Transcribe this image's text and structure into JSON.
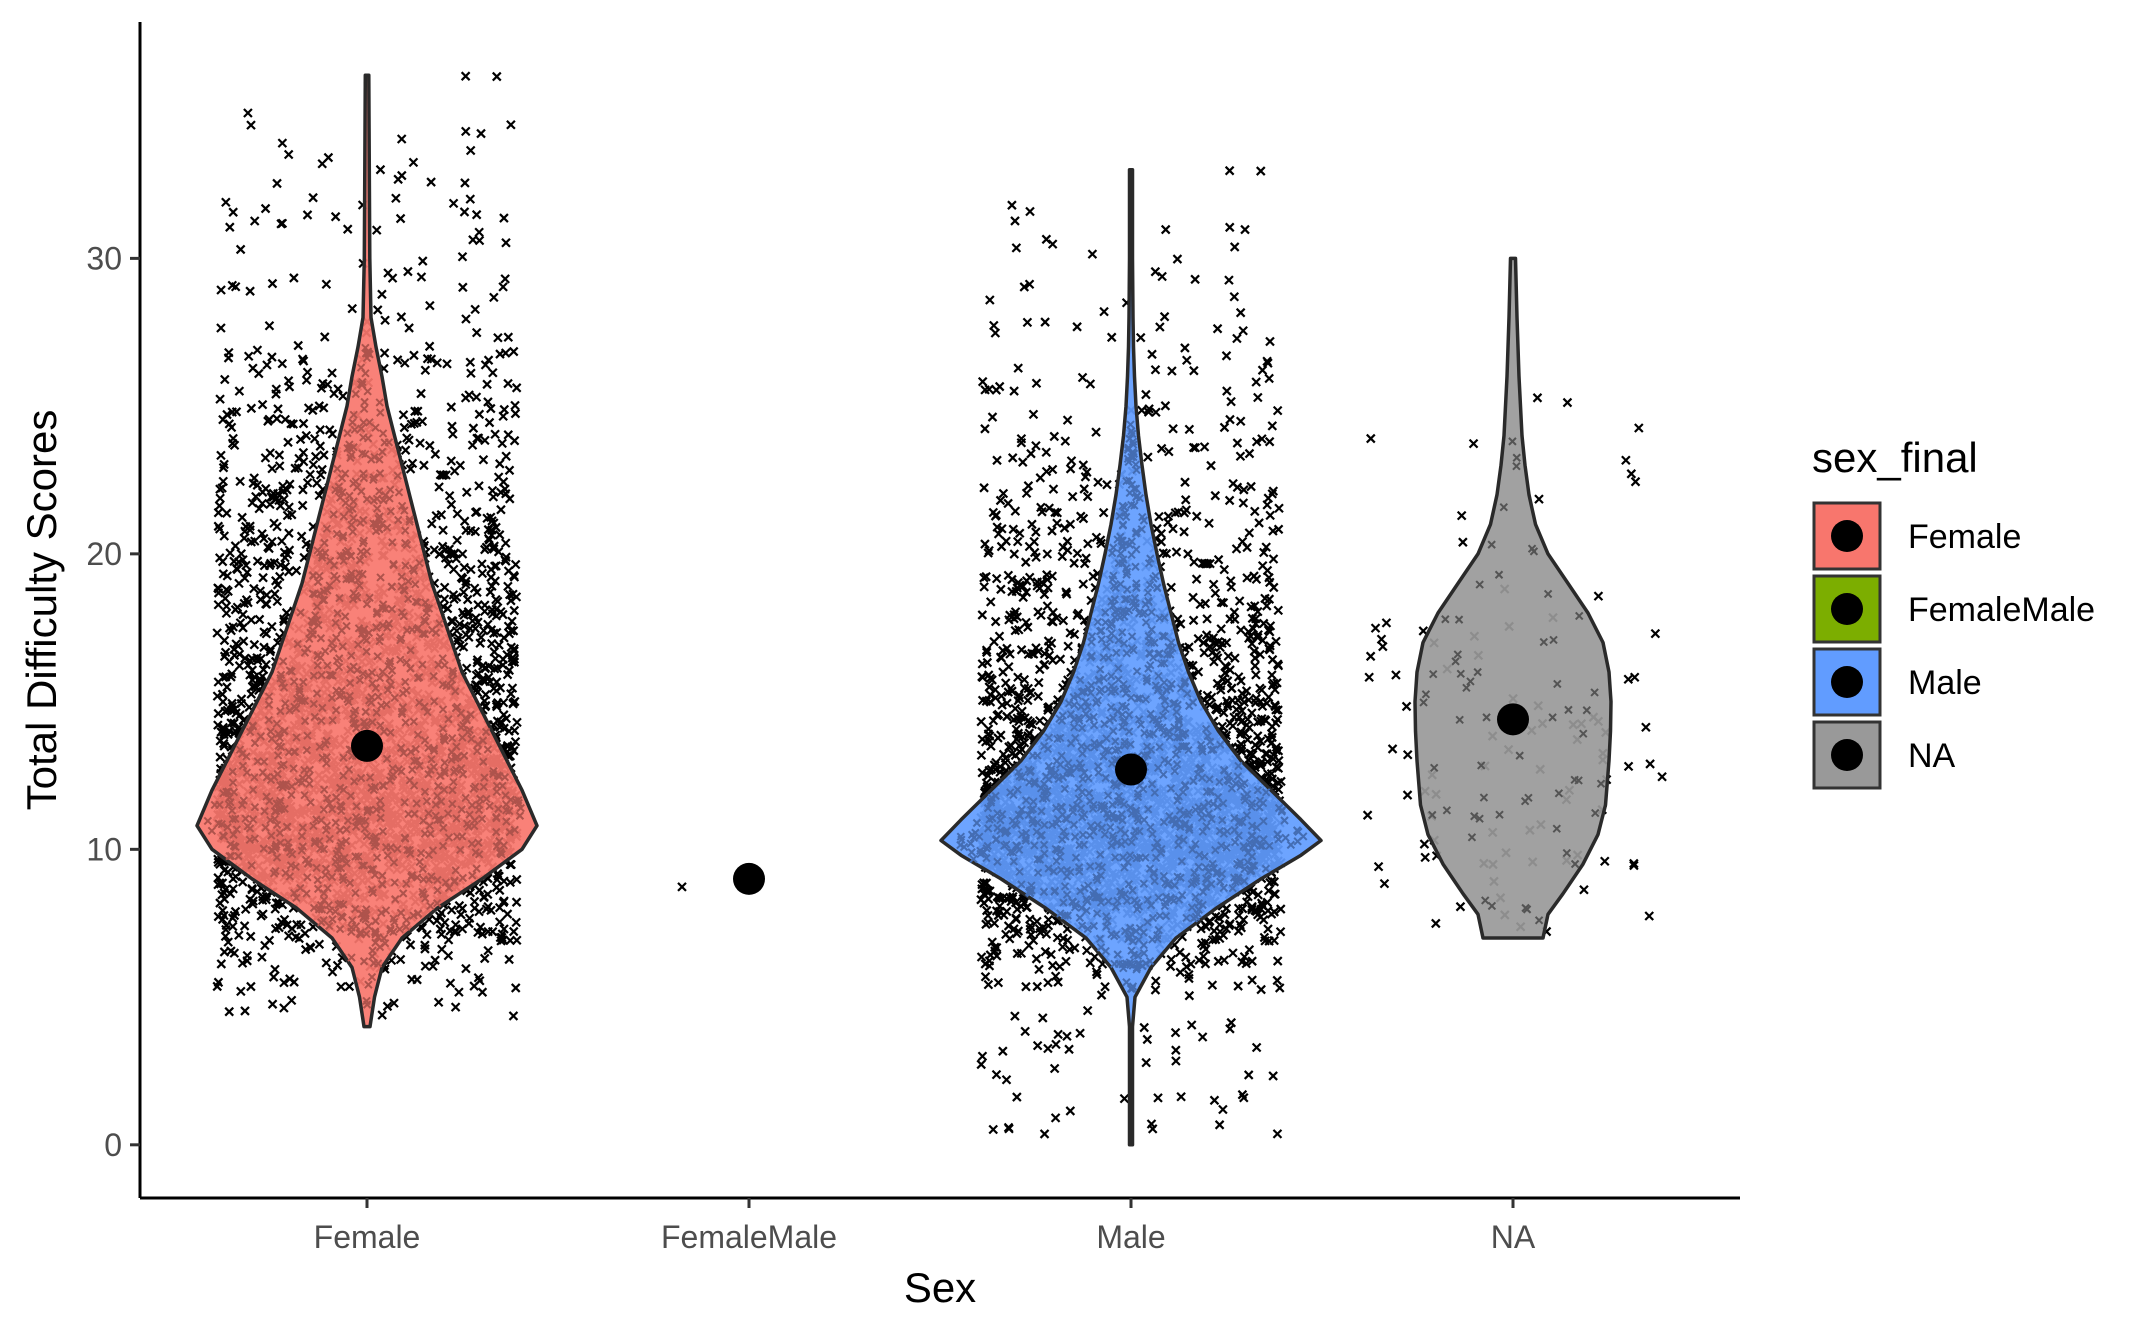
{
  "chart_data": {
    "type": "violin",
    "xlabel": "Sex",
    "ylabel": "Total Difficulty Scores",
    "categories": [
      "Female",
      "FemaleMale",
      "Male",
      "NA"
    ],
    "ylim": [
      -1.8,
      38
    ],
    "yticks": [
      0,
      10,
      20,
      30
    ],
    "grid": false,
    "legend": {
      "title": "sex_final",
      "position": "right",
      "entries": [
        "Female",
        "FemaleMale",
        "Male",
        "NA"
      ]
    },
    "series": [
      {
        "name": "Female",
        "fill": "#F8766D",
        "mean": 13.5,
        "min": 4,
        "max": 36.2,
        "n_points": 2600,
        "violin_profile": [
          [
            4,
            0.6
          ],
          [
            5,
            1.5
          ],
          [
            6,
            3
          ],
          [
            7,
            7
          ],
          [
            8,
            14
          ],
          [
            9,
            23
          ],
          [
            10,
            31
          ],
          [
            10.8,
            34
          ],
          [
            12,
            31
          ],
          [
            13,
            28
          ],
          [
            14,
            25
          ],
          [
            15,
            22
          ],
          [
            16,
            19
          ],
          [
            17,
            17
          ],
          [
            18,
            15
          ],
          [
            19,
            13
          ],
          [
            20,
            11.5
          ],
          [
            21,
            10
          ],
          [
            22,
            8.5
          ],
          [
            23,
            7
          ],
          [
            24,
            5.5
          ],
          [
            25,
            4
          ],
          [
            26,
            3
          ],
          [
            27,
            1.8
          ],
          [
            28,
            0.8
          ],
          [
            30,
            0.55
          ],
          [
            33,
            0.45
          ],
          [
            36.2,
            0.35
          ]
        ]
      },
      {
        "name": "FemaleMale",
        "fill": "#7CAE00",
        "mean": 9,
        "min": 9,
        "max": 9,
        "n_points": 1,
        "violin_profile": []
      },
      {
        "name": "Male",
        "fill": "#619CFF",
        "mean": 12.7,
        "min": 0,
        "max": 33,
        "n_points": 2600,
        "violin_profile": [
          [
            0,
            0.3
          ],
          [
            2,
            0.3
          ],
          [
            4,
            0.3
          ],
          [
            5,
            0.8
          ],
          [
            6,
            4
          ],
          [
            7,
            9
          ],
          [
            8,
            17
          ],
          [
            9,
            26
          ],
          [
            9.8,
            34
          ],
          [
            10.3,
            38
          ],
          [
            11,
            34
          ],
          [
            12,
            28
          ],
          [
            13,
            22
          ],
          [
            14,
            17.5
          ],
          [
            15,
            14
          ],
          [
            16,
            11.5
          ],
          [
            17,
            9.5
          ],
          [
            18,
            8
          ],
          [
            19,
            6.5
          ],
          [
            20,
            5.2
          ],
          [
            21,
            4
          ],
          [
            22,
            3
          ],
          [
            23,
            2.2
          ],
          [
            24,
            1.5
          ],
          [
            25,
            1
          ],
          [
            26,
            0.7
          ],
          [
            27,
            0.5
          ],
          [
            28,
            0.4
          ],
          [
            30,
            0.3
          ],
          [
            33,
            0.3
          ]
        ]
      },
      {
        "name": "NA",
        "fill": "#999999",
        "mean": 14.4,
        "min": 7,
        "max": 30,
        "n_points": 90,
        "violin_profile": [
          [
            7,
            6
          ],
          [
            7.8,
            7
          ],
          [
            8.5,
            10
          ],
          [
            9.5,
            14
          ],
          [
            10.5,
            17
          ],
          [
            11.5,
            18.5
          ],
          [
            13,
            19.2
          ],
          [
            14,
            19.5
          ],
          [
            15,
            19.6
          ],
          [
            16,
            19.2
          ],
          [
            17,
            18
          ],
          [
            18,
            15
          ],
          [
            19,
            11
          ],
          [
            20,
            7
          ],
          [
            21,
            4.5
          ],
          [
            22,
            3.2
          ],
          [
            23,
            2.4
          ],
          [
            24,
            1.8
          ],
          [
            26,
            1.2
          ],
          [
            28,
            0.8
          ],
          [
            30,
            0.5
          ]
        ]
      }
    ],
    "mean_point_color": "#000000",
    "jitter_marker": "x"
  }
}
